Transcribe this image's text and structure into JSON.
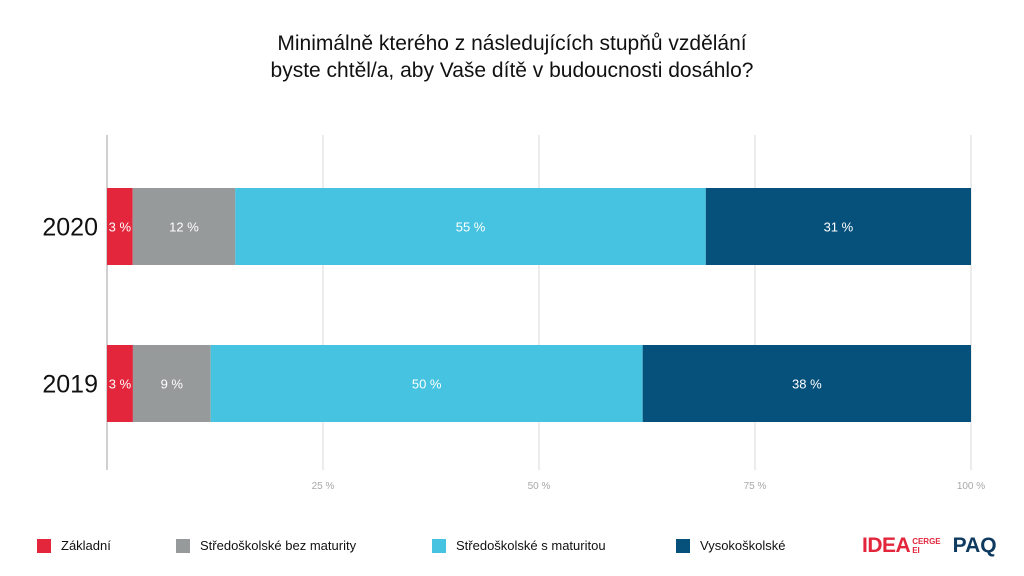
{
  "title": {
    "line1": "Minimálně kterého z následujících stupňů vzdělání",
    "line2": "byste chtěl/a, aby Vaše dítě v budoucnosti dosáhlo?"
  },
  "chart_data": {
    "type": "bar",
    "orientation": "horizontal",
    "stacked": true,
    "categories": [
      "2020",
      "2019"
    ],
    "series": [
      {
        "name": "Základní",
        "color": "#e3263b",
        "values": [
          3,
          3
        ],
        "labels": [
          "3 %",
          "3 %"
        ]
      },
      {
        "name": "Středoškolské bez maturity",
        "color": "#969a9a",
        "values": [
          12,
          9
        ],
        "labels": [
          "12 %",
          "9 %"
        ]
      },
      {
        "name": "Středoškolské s maturitou",
        "color": "#45c3e0",
        "values": [
          55,
          50
        ],
        "labels": [
          "55 %",
          "50 %"
        ]
      },
      {
        "name": "Vysokoškolské",
        "color": "#06507c",
        "values": [
          31,
          38
        ],
        "labels": [
          "31 %",
          "38 %"
        ]
      }
    ],
    "xlim": [
      0,
      100
    ],
    "xticks": [
      25,
      50,
      75,
      100
    ],
    "xtick_labels": [
      "25 %",
      "50 %",
      "75 %",
      "100 %"
    ],
    "grid": true,
    "legend_position": "bottom"
  },
  "logos": {
    "idea": "IDEA",
    "cerge_line1": "CERGE",
    "cerge_line2": "EI",
    "paq": "PAQ"
  }
}
